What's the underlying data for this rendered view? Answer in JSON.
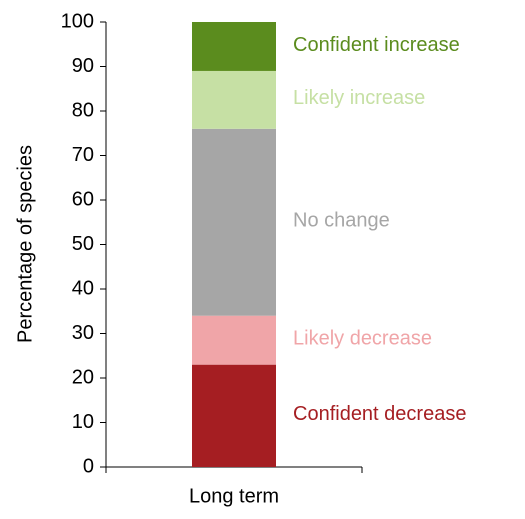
{
  "chart_data": {
    "type": "bar",
    "stacked": true,
    "y_label": "Percentage of species",
    "categories": [
      "Long term"
    ],
    "series": [
      {
        "name": "Confident decrease",
        "color": "#a51e22",
        "values": [
          23
        ]
      },
      {
        "name": "Likely decrease",
        "color": "#f0a5a8",
        "values": [
          11
        ]
      },
      {
        "name": "No change",
        "color": "#a6a6a6",
        "values": [
          42
        ]
      },
      {
        "name": "Likely increase",
        "color": "#c6e0a4",
        "values": [
          13
        ]
      },
      {
        "name": "Confident increase",
        "color": "#5b8c1e",
        "values": [
          11
        ]
      }
    ],
    "ylim": [
      0,
      100
    ],
    "yticks": [
      0,
      10,
      20,
      30,
      40,
      50,
      60,
      70,
      80,
      90,
      100
    ]
  }
}
